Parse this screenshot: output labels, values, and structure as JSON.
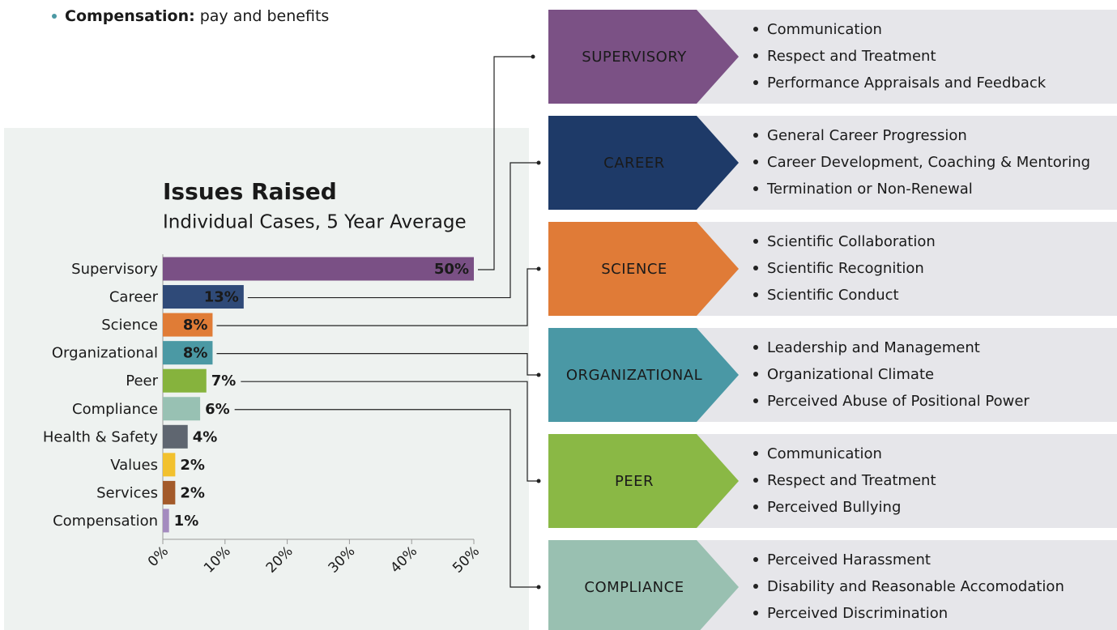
{
  "header": {
    "term": "Compensation:",
    "text": "pay and benefits"
  },
  "chart_data": {
    "type": "bar",
    "orientation": "horizontal",
    "title": "Issues Raised",
    "subtitle": "Individual Cases, 5 Year Average",
    "categories": [
      "Supervisory",
      "Career",
      "Science",
      "Organizational",
      "Peer",
      "Compliance",
      "Health & Safety",
      "Values",
      "Services",
      "Compensation"
    ],
    "values": [
      50,
      13,
      8,
      8,
      7,
      6,
      4,
      2,
      2,
      1
    ],
    "value_labels": [
      "50%",
      "13%",
      "8%",
      "8%",
      "7%",
      "6%",
      "4%",
      "2%",
      "2%",
      "1%"
    ],
    "colors": [
      "#7a5085",
      "#2f4a78",
      "#e07c36",
      "#4b99a4",
      "#86b33d",
      "#98c1b3",
      "#5f6670",
      "#f2c12e",
      "#a35a2a",
      "#a48bbf"
    ],
    "xlim": [
      0,
      50
    ],
    "xticks": [
      {
        "value": 0,
        "label": "0%"
      },
      {
        "value": 10,
        "label": "10%"
      },
      {
        "value": 20,
        "label": "20%"
      },
      {
        "value": 30,
        "label": "30%"
      },
      {
        "value": 40,
        "label": "40%"
      },
      {
        "value": 50,
        "label": "50%"
      }
    ]
  },
  "panels": [
    {
      "label": "SUPERVISORY",
      "color": "#7b5185",
      "items": [
        "Communication",
        "Respect and Treatment",
        "Performance Appraisals and Feedback"
      ]
    },
    {
      "label": "CAREER",
      "color": "#1e3a68",
      "items": [
        "General Career Progression",
        "Career Development, Coaching & Mentoring",
        "Termination or Non-Renewal"
      ]
    },
    {
      "label": "SCIENCE",
      "color": "#e07b37",
      "items": [
        "Scientific Collaboration",
        "Scientific Recognition",
        "Scientific Conduct"
      ]
    },
    {
      "label": "ORGANIZATIONAL",
      "color": "#4a98a5",
      "items": [
        "Leadership and Management",
        "Organizational Climate",
        "Perceived Abuse of Positional Power"
      ]
    },
    {
      "label": "PEER",
      "color": "#8ab845",
      "items": [
        "Communication",
        "Respect and Treatment",
        "Perceived Bullying"
      ]
    },
    {
      "label": "COMPLIANCE",
      "color": "#99c0b1",
      "items": [
        "Perceived Harassment",
        "Disability and Reasonable Accomodation",
        "Perceived Discrimination"
      ]
    }
  ]
}
